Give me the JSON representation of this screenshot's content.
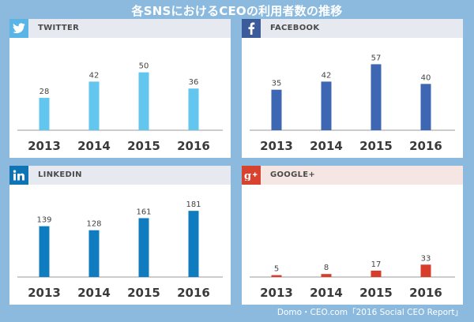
{
  "title": "各SNSにおけるCEOの利用者数の推移",
  "source": "Domo・CEO.com「2016 Social CEO Report」",
  "chart_data": [
    {
      "type": "bar",
      "platform": "TWITTER",
      "icon": "twitter-bird-icon",
      "header_color": "#e6e9ef",
      "badge_color": "#5ab4e6",
      "bar_color": "#62c6ee",
      "categories": [
        "2013",
        "2014",
        "2015",
        "2016"
      ],
      "values": [
        28,
        42,
        50,
        36
      ],
      "ylim": [
        0,
        60
      ]
    },
    {
      "type": "bar",
      "platform": "FACEBOOK",
      "icon": "facebook-f-icon",
      "header_color": "#e6e9ef",
      "badge_color": "#3b5b9b",
      "bar_color": "#3d66b3",
      "categories": [
        "2013",
        "2014",
        "2015",
        "2016"
      ],
      "values": [
        35,
        42,
        57,
        40
      ],
      "ylim": [
        0,
        60
      ]
    },
    {
      "type": "bar",
      "platform": "LINKEDIN",
      "icon": "linkedin-in-icon",
      "header_color": "#e6e9ef",
      "badge_color": "#0e74b3",
      "bar_color": "#0f7cc0",
      "categories": [
        "2013",
        "2014",
        "2015",
        "2016"
      ],
      "values": [
        139,
        128,
        161,
        181
      ],
      "ylim": [
        0,
        190
      ]
    },
    {
      "type": "bar",
      "platform": "GOOGLE+",
      "icon": "google-plus-icon",
      "header_color": "#f6e6e3",
      "badge_color": "#d8432f",
      "bar_color": "#d83c2a",
      "categories": [
        "2013",
        "2014",
        "2015",
        "2016"
      ],
      "values": [
        5,
        8,
        17,
        33
      ],
      "ylim": [
        0,
        185
      ]
    }
  ]
}
